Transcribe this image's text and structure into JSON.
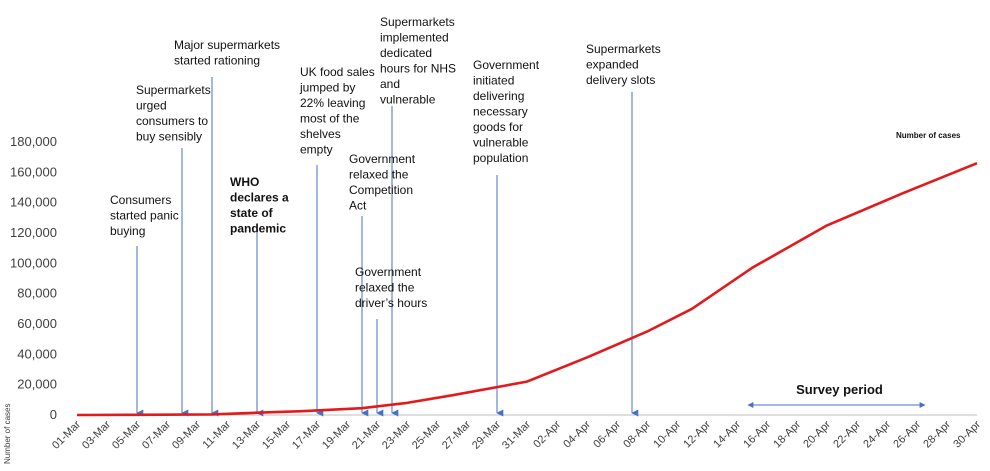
{
  "chart_data": {
    "type": "line",
    "title": "",
    "xlabel": "",
    "ylabel": "Number of cases",
    "ylim": [
      0,
      180000
    ],
    "yticks": [
      0,
      20000,
      40000,
      60000,
      80000,
      100000,
      120000,
      140000,
      160000,
      180000
    ],
    "ytick_labels": [
      "0",
      "20,000",
      "40,000",
      "60,000",
      "80,000",
      "100,000",
      "120,000",
      "140,000",
      "160,000",
      "180,000"
    ],
    "x_categories": [
      "01-Mar",
      "02-Mar",
      "03-Mar",
      "04-Mar",
      "05-Mar",
      "06-Mar",
      "07-Mar",
      "08-Mar",
      "09-Mar",
      "10-Mar",
      "11-Mar",
      "12-Mar",
      "13-Mar",
      "14-Mar",
      "15-Mar",
      "16-Mar",
      "17-Mar",
      "18-Mar",
      "19-Mar",
      "20-Mar",
      "21-Mar",
      "22-Mar",
      "23-Mar",
      "24-Mar",
      "25-Mar",
      "26-Mar",
      "27-Mar",
      "28-Mar",
      "29-Mar",
      "30-Mar",
      "31-Mar",
      "01-Apr",
      "02-Apr",
      "03-Apr",
      "04-Apr",
      "05-Apr",
      "06-Apr",
      "07-Apr",
      "08-Apr",
      "09-Apr",
      "10-Apr",
      "11-Apr",
      "12-Apr",
      "13-Apr",
      "14-Apr",
      "15-Apr",
      "16-Apr",
      "17-Apr",
      "18-Apr",
      "19-Apr",
      "20-Apr",
      "21-Apr",
      "22-Apr",
      "23-Apr",
      "24-Apr",
      "25-Apr",
      "26-Apr",
      "27-Apr",
      "28-Apr",
      "29-Apr",
      "30-Apr"
    ],
    "x_tick_labels": [
      "01-Mar",
      "03-Mar",
      "05-Mar",
      "07-Mar",
      "09-Mar",
      "11-Mar",
      "13-Mar",
      "15-Mar",
      "17-Mar",
      "19-Mar",
      "21-Mar",
      "23-Mar",
      "25-Mar",
      "27-Mar",
      "29-Mar",
      "31-Mar",
      "02-Apr",
      "04-Apr",
      "06-Apr",
      "08-Apr",
      "10-Apr",
      "12-Apr",
      "14-Apr",
      "16-Apr",
      "18-Apr",
      "20-Apr",
      "22-Apr",
      "24-Apr",
      "26-Apr",
      "28-Apr",
      "30-Apr"
    ],
    "series": [
      {
        "name": "Number of cases",
        "color": "#e31a1c",
        "points": [
          {
            "x": "01-Mar",
            "y": 0
          },
          {
            "x": "05-Mar",
            "y": 100
          },
          {
            "x": "10-Mar",
            "y": 400
          },
          {
            "x": "13-Mar",
            "y": 1500
          },
          {
            "x": "16-Mar",
            "y": 2500
          },
          {
            "x": "18-Mar",
            "y": 3500
          },
          {
            "x": "20-Mar",
            "y": 4500
          },
          {
            "x": "23-Mar",
            "y": 8000
          },
          {
            "x": "26-Mar",
            "y": 13000
          },
          {
            "x": "31-Mar",
            "y": 22000
          },
          {
            "x": "04-Apr",
            "y": 38000
          },
          {
            "x": "08-Apr",
            "y": 55000
          },
          {
            "x": "11-Apr",
            "y": 70000
          },
          {
            "x": "15-Apr",
            "y": 97000
          },
          {
            "x": "20-Apr",
            "y": 125000
          },
          {
            "x": "25-Apr",
            "y": 146000
          },
          {
            "x": "30-Apr",
            "y": 166000
          }
        ]
      }
    ],
    "legend": {
      "label": "Number of cases",
      "placement": "top-right"
    },
    "grid": false,
    "annotations": [
      {
        "date": "05-Mar",
        "lines": [
          "Consumers",
          "started panic",
          "buying"
        ],
        "bold": false
      },
      {
        "date": "08-Mar",
        "lines": [
          "Supermarkets",
          "urged",
          "consumers to",
          "buy sensibly"
        ],
        "bold": false
      },
      {
        "date": "10-Mar",
        "lines": [
          "Major supermarkets",
          "started rationing"
        ],
        "bold": false
      },
      {
        "date": "13-Mar",
        "lines": [
          "WHO",
          "declares a",
          "state of",
          "pandemic"
        ],
        "bold": true
      },
      {
        "date": "17-Mar",
        "lines": [
          "UK food sales",
          "jumped by",
          "22% leaving",
          "most of the",
          "shelves",
          "empty"
        ],
        "bold": false
      },
      {
        "date": "20-Mar",
        "lines": [
          "Government",
          "relaxed the",
          "Competition",
          "Act"
        ],
        "bold": false
      },
      {
        "date": "21-Mar",
        "lines": [
          "Government",
          "relaxed the",
          "driver’s hours"
        ],
        "bold": false
      },
      {
        "date": "22-Mar",
        "lines": [
          "Supermarkets",
          "implemented",
          "dedicated",
          "hours for NHS",
          "and",
          "vulnerable"
        ],
        "bold": false
      },
      {
        "date": "29-Mar",
        "lines": [
          "Government",
          "initiated",
          "delivering",
          "necessary",
          "goods for",
          "vulnerable",
          "population"
        ],
        "bold": false
      },
      {
        "date": "07-Apr",
        "lines": [
          "Supermarkets",
          "expanded",
          "delivery slots"
        ],
        "bold": false
      }
    ],
    "survey_period": {
      "label": "Survey period",
      "start": "15-Apr",
      "end": "26-Apr"
    },
    "arrow_color": "#4472c4"
  }
}
